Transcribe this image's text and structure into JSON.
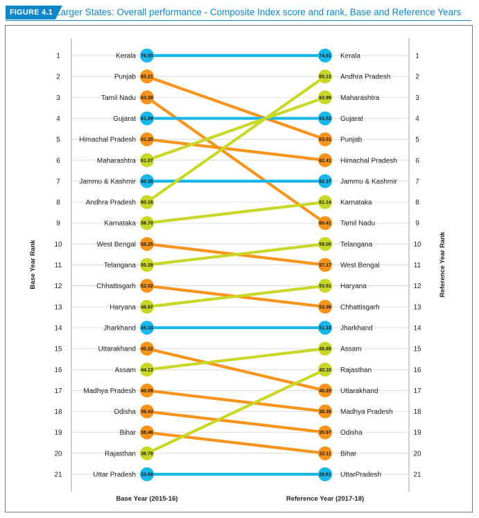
{
  "figure": {
    "label": "FIGURE 4.1",
    "title": "Larger States: Overall performance - Composite Index score and rank, Base and Reference Years"
  },
  "colors": {
    "blue": "#1ab7ea",
    "orange": "#f7941d",
    "green": "#c9d828",
    "accent": "#0f86c7"
  },
  "chart_data": {
    "type": "slope",
    "left_axis_label": "Base Year Rank",
    "right_axis_label": "Reference Year Rank",
    "left_column_label": "Base Year (2015-16)",
    "right_column_label": "Reference Year (2017-18)",
    "ranks": [
      1,
      2,
      3,
      4,
      5,
      6,
      7,
      8,
      9,
      10,
      11,
      12,
      13,
      14,
      15,
      16,
      17,
      18,
      19,
      20,
      21
    ],
    "base": [
      {
        "state": "Kerala",
        "score": "76.55"
      },
      {
        "state": "Punjab",
        "score": "65.21"
      },
      {
        "state": "Tamil Nadu",
        "score": "63.38"
      },
      {
        "state": "Gujarat",
        "score": "61.99"
      },
      {
        "state": "Himachal Pradesh",
        "score": "61.20"
      },
      {
        "state": "Maharashtra",
        "score": "61.07"
      },
      {
        "state": "Jammu & Kashmir",
        "score": "60.35"
      },
      {
        "state": "Andhra Pradesh",
        "score": "60.16"
      },
      {
        "state": "Karnataka",
        "score": "58.70"
      },
      {
        "state": "West Bengal",
        "score": "58.25"
      },
      {
        "state": "Telangana",
        "score": "55.39"
      },
      {
        "state": "Chhattisgarh",
        "score": "52.02"
      },
      {
        "state": "Haryana",
        "score": "46.97"
      },
      {
        "state": "Jharkhand",
        "score": "45.33"
      },
      {
        "state": "Uttarakhand",
        "score": "45.22"
      },
      {
        "state": "Assam",
        "score": "44.13"
      },
      {
        "state": "Madhya Pradesh",
        "score": "40.09"
      },
      {
        "state": "Odisha",
        "score": "39.43"
      },
      {
        "state": "Bihar",
        "score": "38.46"
      },
      {
        "state": "Rajasthan",
        "score": "36.79"
      },
      {
        "state": "Uttar Pradesh",
        "score": "33.69"
      }
    ],
    "reference": [
      {
        "state": "Kerala",
        "score": "74.01"
      },
      {
        "state": "Andhra Pradesh",
        "score": "65.13"
      },
      {
        "state": "Maharashtra",
        "score": "63.99"
      },
      {
        "state": "Gujarat",
        "score": "63.52"
      },
      {
        "state": "Punjab",
        "score": "63.01"
      },
      {
        "state": "Himachal Pradesh",
        "score": "62.41"
      },
      {
        "state": "Jammu & Kashmir",
        "score": "62.37"
      },
      {
        "state": "Karnataka",
        "score": "61.14"
      },
      {
        "state": "Tamil Nadu",
        "score": "60.41"
      },
      {
        "state": "Telangana",
        "score": "59.00"
      },
      {
        "state": "West Bengal",
        "score": "57.17"
      },
      {
        "state": "Haryana",
        "score": "53.51"
      },
      {
        "state": "Chhattisgarh",
        "score": "53.36"
      },
      {
        "state": "Jharkhand",
        "score": "51.33"
      },
      {
        "state": "Assam",
        "score": "48.85"
      },
      {
        "state": "Rajasthan",
        "score": "43.10"
      },
      {
        "state": "Uttarakhand",
        "score": "40.20"
      },
      {
        "state": "Madhya Pradesh",
        "score": "38.39"
      },
      {
        "state": "Odisha",
        "score": "35.97"
      },
      {
        "state": "Bihar",
        "score": "32.11"
      },
      {
        "state": "UttarPradesh",
        "score": "28.61"
      }
    ],
    "links": [
      {
        "from": 1,
        "to": 1,
        "trend": "same"
      },
      {
        "from": 2,
        "to": 5,
        "trend": "down"
      },
      {
        "from": 3,
        "to": 9,
        "trend": "down"
      },
      {
        "from": 4,
        "to": 4,
        "trend": "same"
      },
      {
        "from": 5,
        "to": 6,
        "trend": "down"
      },
      {
        "from": 6,
        "to": 3,
        "trend": "up"
      },
      {
        "from": 7,
        "to": 7,
        "trend": "same"
      },
      {
        "from": 8,
        "to": 2,
        "trend": "up"
      },
      {
        "from": 9,
        "to": 8,
        "trend": "up"
      },
      {
        "from": 10,
        "to": 11,
        "trend": "down"
      },
      {
        "from": 11,
        "to": 10,
        "trend": "up"
      },
      {
        "from": 12,
        "to": 13,
        "trend": "down"
      },
      {
        "from": 13,
        "to": 12,
        "trend": "up"
      },
      {
        "from": 14,
        "to": 14,
        "trend": "same"
      },
      {
        "from": 15,
        "to": 17,
        "trend": "down"
      },
      {
        "from": 16,
        "to": 15,
        "trend": "up"
      },
      {
        "from": 17,
        "to": 18,
        "trend": "down"
      },
      {
        "from": 18,
        "to": 19,
        "trend": "down"
      },
      {
        "from": 19,
        "to": 20,
        "trend": "down"
      },
      {
        "from": 20,
        "to": 16,
        "trend": "up"
      },
      {
        "from": 21,
        "to": 21,
        "trend": "same"
      }
    ]
  }
}
